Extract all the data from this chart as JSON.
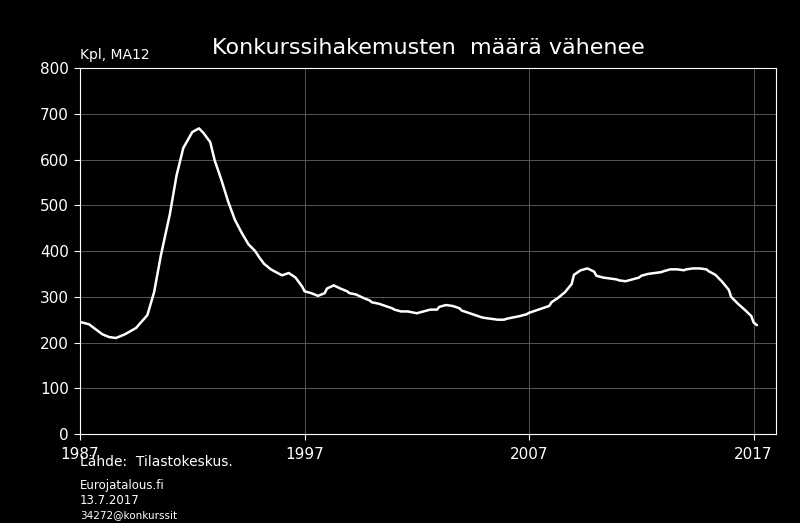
{
  "title": "Konkurssihakemusten  määrä vähenee",
  "ylabel": "Kpl, MA12",
  "background_color": "#000000",
  "text_color": "#ffffff",
  "line_color": "#ffffff",
  "grid_color": "#555555",
  "xlim": [
    1987,
    2018
  ],
  "ylim": [
    0,
    800
  ],
  "xticks": [
    1987,
    1997,
    2007,
    2017
  ],
  "yticks": [
    0,
    100,
    200,
    300,
    400,
    500,
    600,
    700,
    800
  ],
  "source_text": "Lähde:  Tilastokeskus.",
  "source_text2": "Eurojatalous.fi",
  "source_text3": "13.7.2017",
  "source_text4": "34272@konkurssit",
  "series": [
    [
      1987.0,
      245
    ],
    [
      1987.4,
      240
    ],
    [
      1988.0,
      218
    ],
    [
      1988.3,
      212
    ],
    [
      1988.6,
      210
    ],
    [
      1989.0,
      218
    ],
    [
      1989.5,
      232
    ],
    [
      1990.0,
      260
    ],
    [
      1990.3,
      310
    ],
    [
      1990.6,
      390
    ],
    [
      1991.0,
      480
    ],
    [
      1991.3,
      565
    ],
    [
      1991.6,
      625
    ],
    [
      1992.0,
      660
    ],
    [
      1992.3,
      668
    ],
    [
      1992.5,
      658
    ],
    [
      1992.8,
      638
    ],
    [
      1993.0,
      598
    ],
    [
      1993.3,
      555
    ],
    [
      1993.6,
      508
    ],
    [
      1993.9,
      468
    ],
    [
      1994.2,
      440
    ],
    [
      1994.5,
      415
    ],
    [
      1994.8,
      400
    ],
    [
      1995.0,
      385
    ],
    [
      1995.2,
      372
    ],
    [
      1995.5,
      360
    ],
    [
      1995.8,
      352
    ],
    [
      1996.0,
      347
    ],
    [
      1996.3,
      352
    ],
    [
      1996.6,
      342
    ],
    [
      1996.9,
      322
    ],
    [
      1997.0,
      312
    ],
    [
      1997.3,
      308
    ],
    [
      1997.6,
      302
    ],
    [
      1997.9,
      308
    ],
    [
      1998.0,
      318
    ],
    [
      1998.3,
      325
    ],
    [
      1998.6,
      318
    ],
    [
      1998.9,
      312
    ],
    [
      1999.0,
      308
    ],
    [
      1999.3,
      305
    ],
    [
      1999.6,
      298
    ],
    [
      1999.9,
      292
    ],
    [
      2000.0,
      288
    ],
    [
      2000.3,
      285
    ],
    [
      2000.6,
      280
    ],
    [
      2000.9,
      275
    ],
    [
      2001.0,
      272
    ],
    [
      2001.3,
      268
    ],
    [
      2001.6,
      268
    ],
    [
      2001.9,
      265
    ],
    [
      2002.0,
      264
    ],
    [
      2002.3,
      268
    ],
    [
      2002.6,
      272
    ],
    [
      2002.9,
      272
    ],
    [
      2003.0,
      278
    ],
    [
      2003.3,
      282
    ],
    [
      2003.6,
      280
    ],
    [
      2003.9,
      275
    ],
    [
      2004.0,
      270
    ],
    [
      2004.3,
      265
    ],
    [
      2004.6,
      260
    ],
    [
      2004.9,
      255
    ],
    [
      2005.0,
      254
    ],
    [
      2005.3,
      252
    ],
    [
      2005.6,
      250
    ],
    [
      2005.9,
      250
    ],
    [
      2006.0,
      252
    ],
    [
      2006.3,
      255
    ],
    [
      2006.6,
      258
    ],
    [
      2006.9,
      262
    ],
    [
      2007.0,
      265
    ],
    [
      2007.3,
      270
    ],
    [
      2007.6,
      275
    ],
    [
      2007.9,
      280
    ],
    [
      2008.0,
      288
    ],
    [
      2008.3,
      298
    ],
    [
      2008.6,
      310
    ],
    [
      2008.9,
      328
    ],
    [
      2009.0,
      348
    ],
    [
      2009.3,
      358
    ],
    [
      2009.6,
      362
    ],
    [
      2009.9,
      355
    ],
    [
      2010.0,
      346
    ],
    [
      2010.3,
      342
    ],
    [
      2010.6,
      340
    ],
    [
      2010.9,
      338
    ],
    [
      2011.0,
      336
    ],
    [
      2011.3,
      334
    ],
    [
      2011.6,
      338
    ],
    [
      2011.9,
      342
    ],
    [
      2012.0,
      346
    ],
    [
      2012.3,
      350
    ],
    [
      2012.6,
      352
    ],
    [
      2012.9,
      354
    ],
    [
      2013.0,
      356
    ],
    [
      2013.3,
      360
    ],
    [
      2013.6,
      360
    ],
    [
      2013.9,
      358
    ],
    [
      2014.0,
      360
    ],
    [
      2014.3,
      362
    ],
    [
      2014.6,
      362
    ],
    [
      2014.9,
      360
    ],
    [
      2015.0,
      356
    ],
    [
      2015.3,
      348
    ],
    [
      2015.6,
      333
    ],
    [
      2015.9,
      315
    ],
    [
      2016.0,
      300
    ],
    [
      2016.3,
      285
    ],
    [
      2016.6,
      272
    ],
    [
      2016.9,
      258
    ],
    [
      2017.0,
      244
    ],
    [
      2017.15,
      238
    ]
  ]
}
